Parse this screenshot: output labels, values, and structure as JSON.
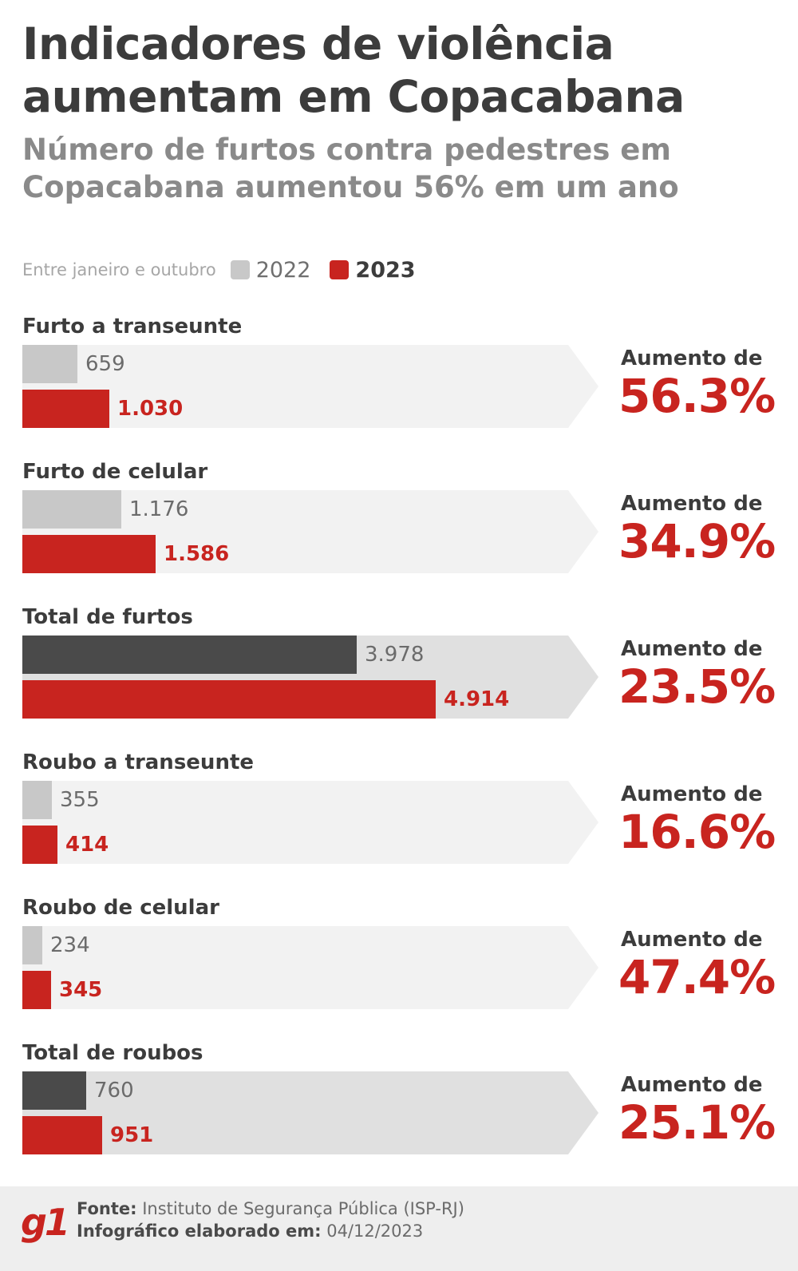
{
  "title": "Indicadores de violência aumentam em Copacabana",
  "subtitle": "Número de furtos contra pedestres em Copacabana aumentou 56% em um ano",
  "legend": {
    "note": "Entre janeiro e outubro",
    "y2022": "2022",
    "y2023": "2023"
  },
  "colors": {
    "y2022": "#c8c8c8",
    "y2022_total": "#4a4a4a",
    "y2023": "#c8241f",
    "arrow_bg": "#f2f2f2",
    "arrow_bg_total": "#e0e0e0"
  },
  "chart_data": {
    "type": "bar",
    "categories": [
      "Furto a transeunte",
      "Furto de celular",
      "Total de furtos",
      "Roubo a transeunte",
      "Roubo de celular",
      "Total de roubos"
    ],
    "series": [
      {
        "name": "2022",
        "values": [
          659,
          1176,
          3978,
          355,
          234,
          760
        ],
        "labels": [
          "659",
          "1.176",
          "3.978",
          "355",
          "234",
          "760"
        ]
      },
      {
        "name": "2023",
        "values": [
          1030,
          1586,
          4914,
          414,
          345,
          951
        ],
        "labels": [
          "1.030",
          "1.586",
          "4.914",
          "414",
          "345",
          "951"
        ]
      }
    ],
    "increase_label": "Aumento de",
    "increases": [
      "56.3%",
      "34.9%",
      "23.5%",
      "16.6%",
      "47.4%",
      "25.1%"
    ],
    "totals": [
      false,
      false,
      true,
      false,
      false,
      true
    ]
  },
  "footer": {
    "logo": "g1",
    "source_label": "Fonte:",
    "source_value": " Instituto de Segurança Pública (ISP-RJ)",
    "date_label": "Infográfico elaborado em:",
    "date_value": " 04/12/2023"
  }
}
